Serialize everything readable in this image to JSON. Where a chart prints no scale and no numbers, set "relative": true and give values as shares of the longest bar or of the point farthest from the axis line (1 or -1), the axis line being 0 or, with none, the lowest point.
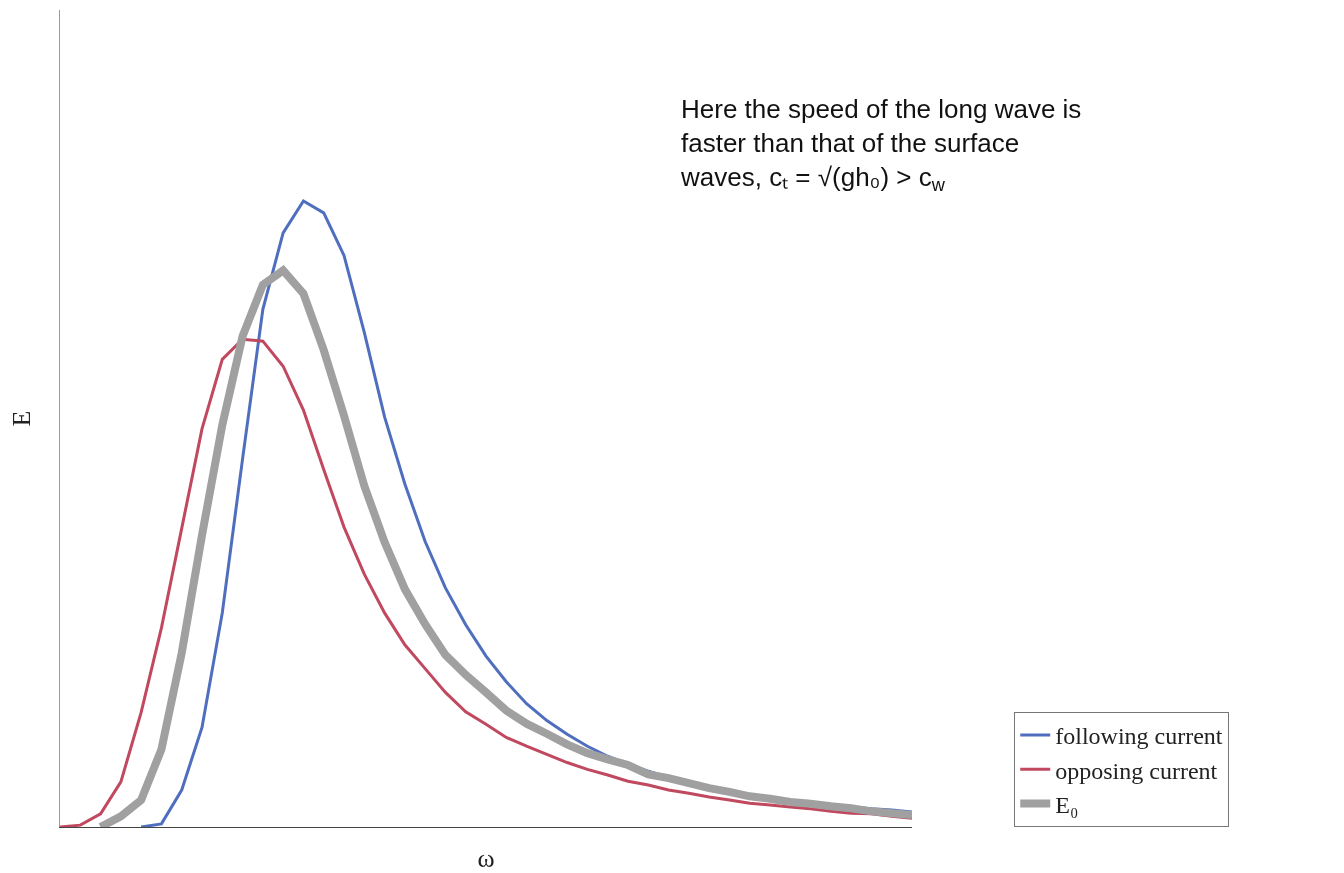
{
  "chart_data": {
    "type": "line",
    "relative": true,
    "xlabel": "ω",
    "ylabel": "E",
    "categories": [
      null,
      null,
      null,
      null,
      null,
      null,
      null,
      null,
      null,
      null,
      null,
      null,
      null,
      null,
      null,
      null,
      null,
      null,
      null,
      null,
      null,
      null,
      null,
      null,
      null,
      null,
      null,
      null,
      null,
      null,
      null,
      null,
      null,
      null,
      null,
      null,
      null,
      null,
      null,
      null,
      null,
      null,
      null
    ],
    "series": [
      {
        "name": "following current",
        "color": "#4f6fbe",
        "values": [
          null,
          null,
          null,
          null,
          0,
          0.005,
          0.059,
          0.159,
          0.342,
          0.588,
          0.827,
          0.949,
          1,
          0.981,
          0.913,
          0.79,
          0.655,
          0.548,
          0.456,
          0.382,
          0.323,
          0.273,
          0.232,
          0.197,
          0.17,
          0.148,
          0.129,
          0.113,
          0.1,
          0.089,
          0.079,
          0.072,
          0.064,
          0.057,
          0.051,
          0.046,
          0.041,
          0.038,
          0.035,
          0.032,
          0.029,
          0.027,
          0.024
        ]
      },
      {
        "name": "opposing current",
        "color": "#c0485f",
        "values": [
          0,
          0.003,
          0.021,
          0.072,
          0.183,
          0.318,
          0.477,
          0.636,
          0.747,
          0.779,
          0.776,
          0.736,
          0.666,
          0.571,
          0.479,
          0.404,
          0.342,
          0.291,
          0.253,
          0.215,
          0.184,
          0.164,
          0.143,
          0.129,
          0.116,
          0.103,
          0.092,
          0.083,
          0.073,
          0.067,
          0.059,
          0.054,
          0.048,
          0.043,
          0.038,
          0.035,
          0.032,
          0.029,
          0.025,
          0.022,
          0.021,
          0.017,
          0.014
        ]
      },
      {
        "name": "E₀",
        "color": "#a0a0a0",
        "values": [
          null,
          null,
          0,
          0.017,
          0.043,
          0.124,
          0.278,
          0.466,
          0.642,
          0.784,
          0.866,
          0.889,
          0.852,
          0.762,
          0.657,
          0.545,
          0.455,
          0.38,
          0.324,
          0.275,
          0.243,
          0.215,
          0.186,
          0.165,
          0.149,
          0.132,
          0.118,
          0.108,
          0.099,
          0.084,
          0.078,
          0.07,
          0.062,
          0.056,
          0.049,
          0.045,
          0.04,
          0.037,
          0.033,
          0.03,
          0.025,
          0.022,
          0.019
        ]
      }
    ],
    "annotations": [
      "Here the speed of the long wave is faster than that of the surface waves, cₜ = √(gh₀) > c$_{w}$"
    ],
    "legend": "bottom right",
    "marker": "none",
    "line_style": "solid"
  }
}
